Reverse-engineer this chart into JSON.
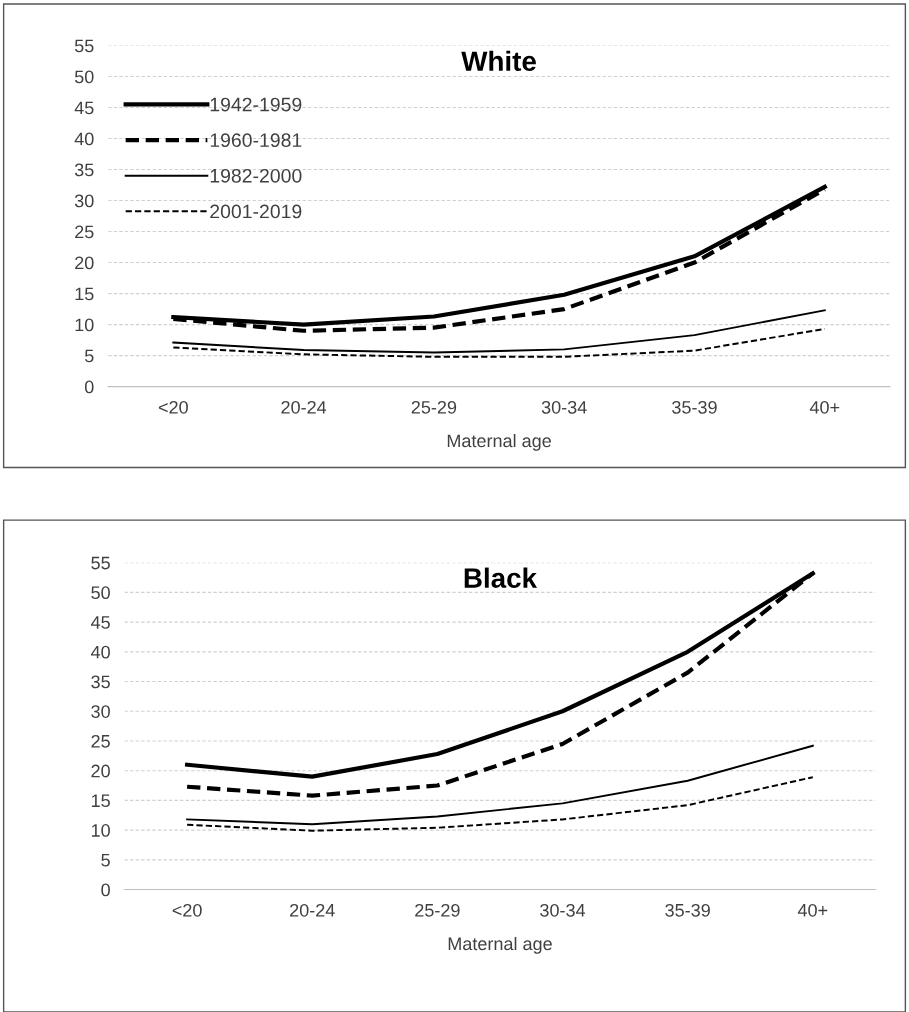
{
  "chart_data": [
    {
      "type": "line",
      "title": "White",
      "xlabel": "Maternal age",
      "categories": [
        "<20",
        "20-24",
        "25-29",
        "30-34",
        "35-39",
        "40+"
      ],
      "ylim": [
        0,
        55
      ],
      "yticks": [
        0,
        5,
        10,
        15,
        20,
        25,
        30,
        35,
        40,
        45,
        50,
        55
      ],
      "grid": "y",
      "legend": "top left",
      "marker": "none",
      "series": [
        {
          "name": "1942-1959",
          "color": "#000000",
          "line_style": "solid",
          "values": [
            11.2,
            10.0,
            11.3,
            14.8,
            21.0,
            32.2
          ]
        },
        {
          "name": "1960-1981",
          "color": "#000000",
          "line_style": "dashed",
          "values": [
            10.9,
            9.0,
            9.5,
            12.5,
            20.0,
            31.8
          ]
        },
        {
          "name": "1982-2000",
          "color": "#000000",
          "line_style": "solid",
          "values": [
            7.1,
            5.9,
            5.5,
            6.0,
            8.3,
            12.3
          ]
        },
        {
          "name": "2001-2019",
          "color": "#000000",
          "line_style": "dashed",
          "values": [
            6.3,
            5.2,
            4.8,
            4.8,
            5.8,
            9.3
          ]
        }
      ]
    },
    {
      "type": "line",
      "title": "Black",
      "xlabel": "Maternal age",
      "categories": [
        "<20",
        "20-24",
        "25-29",
        "30-34",
        "35-39",
        "40+"
      ],
      "ylim": [
        0,
        55
      ],
      "yticks": [
        0,
        5,
        10,
        15,
        20,
        25,
        30,
        35,
        40,
        45,
        50,
        55
      ],
      "grid": "y",
      "marker": "none",
      "series": [
        {
          "color": "#000000",
          "line_style": "solid",
          "values": [
            21.0,
            19.0,
            22.8,
            30.0,
            40.0,
            53.2
          ]
        },
        {
          "color": "#000000",
          "line_style": "dashed",
          "values": [
            17.3,
            15.8,
            17.5,
            24.5,
            36.5,
            53.2
          ]
        },
        {
          "color": "#000000",
          "line_style": "solid",
          "values": [
            11.8,
            11.0,
            12.3,
            14.5,
            18.3,
            24.2
          ]
        },
        {
          "color": "#000000",
          "line_style": "dashed",
          "values": [
            10.9,
            9.9,
            10.4,
            11.8,
            14.2,
            18.9
          ]
        }
      ]
    }
  ]
}
